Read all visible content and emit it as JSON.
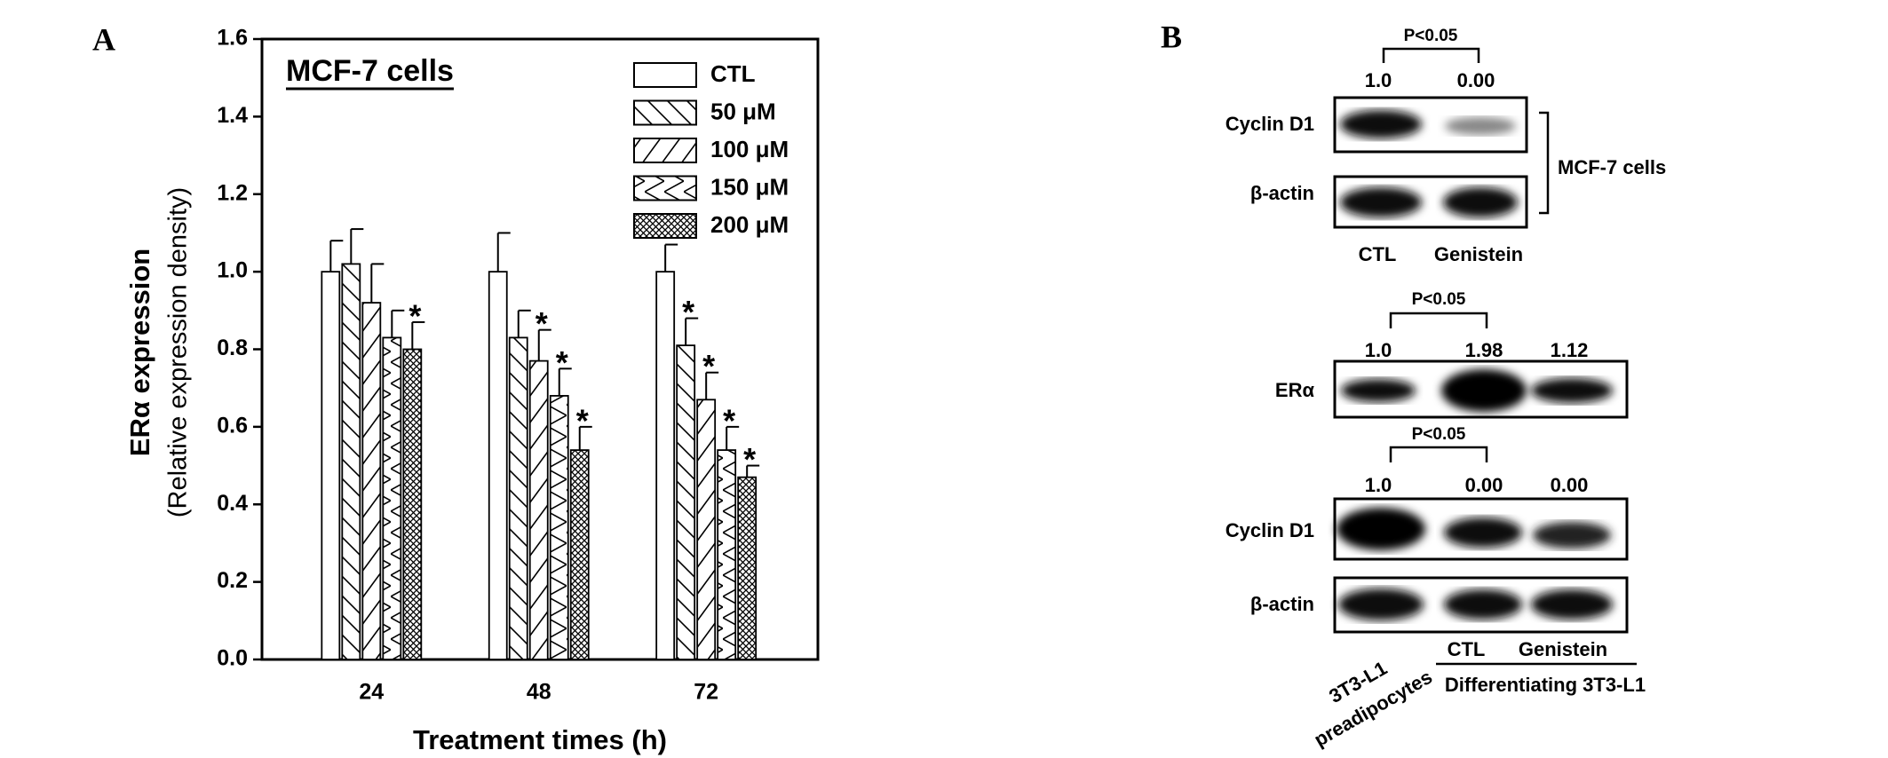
{
  "chart_data": {
    "type": "bar",
    "panel_label": "A",
    "title": "MCF-7 cells",
    "x_label": "Treatment times (h)",
    "y_label": [
      "ERα expression",
      "(Relative expression density)"
    ],
    "categories": [
      "24",
      "48",
      "72"
    ],
    "ylim": [
      0,
      1.6
    ],
    "yticks": [
      {
        "value": 0,
        "label": "0.0"
      },
      0.2,
      0.4,
      0.6,
      0.8,
      {
        "value": 1,
        "label": "1.0"
      },
      1.2,
      1.4,
      1.6
    ],
    "legend": "top-right",
    "series": [
      {
        "name": "CTL",
        "color": "#000000",
        "pattern": "none",
        "values": [
          1.0,
          1.0,
          1.0
        ],
        "errors": [
          0.08,
          0.1,
          0.07
        ],
        "annotations": [
          null,
          null,
          null
        ]
      },
      {
        "name": "50 μM",
        "color": "#000000",
        "pattern": "backslash",
        "values": [
          1.02,
          0.83,
          0.81
        ],
        "errors": [
          0.09,
          0.07,
          0.07
        ],
        "annotations": [
          null,
          null,
          "*"
        ]
      },
      {
        "name": "100 μM",
        "color": "#000000",
        "pattern": "slash",
        "values": [
          0.92,
          0.77,
          0.67
        ],
        "errors": [
          0.1,
          0.08,
          0.07
        ],
        "annotations": [
          null,
          "*",
          "*"
        ]
      },
      {
        "name": "150 μM",
        "color": "#000000",
        "pattern": "zigzag",
        "values": [
          0.83,
          0.68,
          0.54
        ],
        "errors": [
          0.07,
          0.07,
          0.06
        ],
        "annotations": [
          null,
          "*",
          "*"
        ]
      },
      {
        "name": "200 μM",
        "color": "#000000",
        "pattern": "crosshatch",
        "values": [
          0.8,
          0.54,
          0.47
        ],
        "errors": [
          0.07,
          0.06,
          0.03
        ],
        "annotations": [
          "*",
          "*",
          "*"
        ]
      }
    ]
  },
  "panel_b": {
    "label": "B",
    "mcf7": {
      "p_label": "P<0.05",
      "numbers": [
        "1.0",
        "0.00"
      ],
      "rows": [
        "Cyclin D1",
        "β-actin"
      ],
      "group": "MCF-7 cells",
      "lanes": [
        "CTL",
        "Genistein"
      ]
    },
    "adipo": {
      "era": {
        "p_label": "P<0.05",
        "numbers": [
          "1.0",
          "1.98",
          "1.12"
        ],
        "row": "ERα"
      },
      "cyclin": {
        "p_label": "P<0.05",
        "numbers": [
          "1.0",
          "0.00",
          "0.00"
        ],
        "row": "Cyclin D1"
      },
      "actin": "β-actin",
      "lane_first": [
        "3T3-L1",
        "preadipocytes"
      ],
      "lanes": [
        "CTL",
        "Genistein"
      ],
      "group": "Differentiating 3T3-L1"
    }
  }
}
